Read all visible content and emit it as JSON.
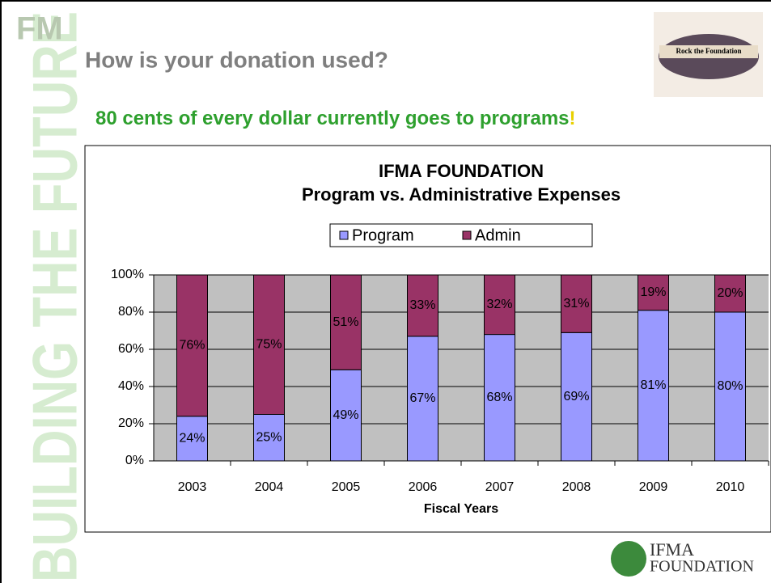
{
  "slide": {
    "corner_mark": "FM",
    "side_banner": "BUILDING THE FUTURE",
    "heading": "How is your donation used?",
    "tagline": "80 cents of every dollar currently goes to programs",
    "tagline_end": "!",
    "badge_text": "Rock the Foundation",
    "logo_top": "IFMA",
    "logo_bottom": "FOUNDATION"
  },
  "chart_data": {
    "type": "stacked_bar",
    "title": "IFMA FOUNDATION",
    "subtitle": "Program vs. Administrative Expenses",
    "xlabel": "Fiscal Years",
    "categories": [
      "2003",
      "2004",
      "2005",
      "2006",
      "2007",
      "2008",
      "2009",
      "2010"
    ],
    "series": [
      {
        "name": "Program",
        "color": "#9999ff",
        "values": [
          24,
          25,
          49,
          67,
          68,
          69,
          81,
          80
        ],
        "value_labels": [
          "24%",
          "25%",
          "49%",
          "67%",
          "68%",
          "69%",
          "81%",
          "80%"
        ]
      },
      {
        "name": "Admin",
        "color": "#993366",
        "values": [
          76,
          75,
          51,
          33,
          32,
          31,
          19,
          20
        ],
        "value_labels": [
          "76%",
          "75%",
          "51%",
          "33%",
          "32%",
          "31%",
          "19%",
          "20%"
        ]
      }
    ],
    "ylim": [
      0,
      100
    ],
    "yticks": [
      {
        "value": 0,
        "label": "0%"
      },
      {
        "value": 20,
        "label": "20%"
      },
      {
        "value": 40,
        "label": "40%"
      },
      {
        "value": 60,
        "label": "60%"
      },
      {
        "value": 80,
        "label": "80%"
      },
      {
        "value": 100,
        "label": "100%"
      }
    ],
    "grid": true,
    "legend": "top",
    "plot_background": "#c0c0c0"
  }
}
